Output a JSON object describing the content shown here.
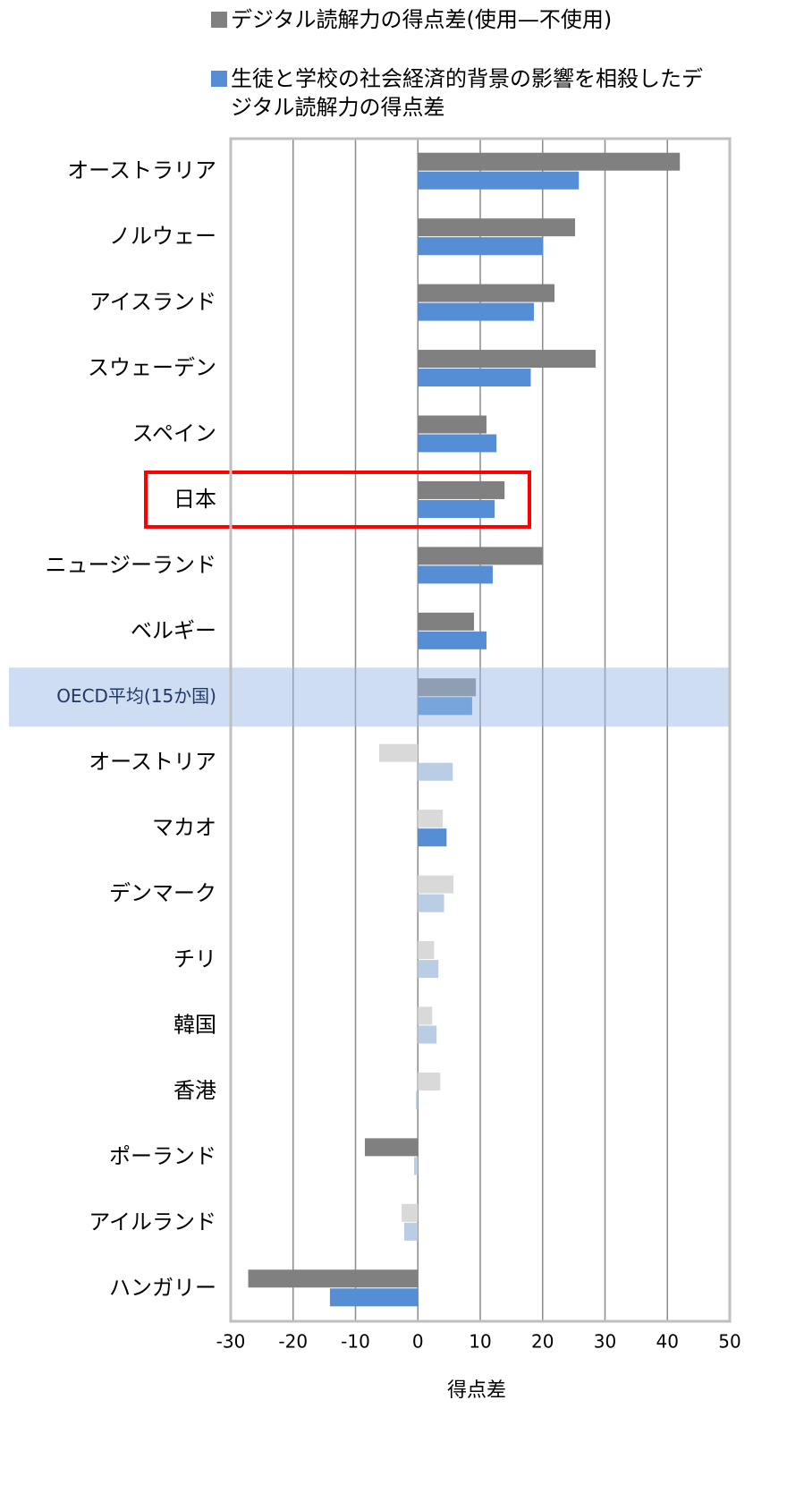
{
  "chart_data": {
    "type": "hbar",
    "categories": [
      "オーストラリア",
      "ノルウェー",
      "アイスランド",
      "スウェーデン",
      "スペイン",
      "日本",
      "ニュージーランド",
      "ベルギー",
      "OECD平均(15か国)",
      "オーストリア",
      "マカオ",
      "デンマーク",
      "チリ",
      "韓国",
      "香港",
      "ポーランド",
      "アイルランド",
      "ハンガリー"
    ],
    "series": [
      {
        "name": "デジタル読解力の得点差(使用—不使用)",
        "color": "#808080",
        "values": [
          42.0,
          25.2,
          21.9,
          28.5,
          11.0,
          13.9,
          20.1,
          9.0,
          9.3,
          -6.2,
          4.0,
          5.7,
          2.6,
          2.3,
          3.6,
          -8.5,
          -2.6,
          -27.2
        ],
        "colors": [
          "#808080",
          "#808080",
          "#808080",
          "#808080",
          "#808080",
          "#808080",
          "#808080",
          "#808080",
          "#808080",
          "#d9d9d9",
          "#d9d9d9",
          "#d9d9d9",
          "#d9d9d9",
          "#d9d9d9",
          "#d9d9d9",
          "#808080",
          "#d9d9d9",
          "#808080"
        ]
      },
      {
        "name": "生徒と学校の社会経済的背景の影響を相殺したデジタル読解力の得点差",
        "color": "#558ed5",
        "values": [
          25.8,
          20.1,
          18.6,
          18.1,
          12.6,
          12.3,
          12.0,
          11.0,
          8.7,
          5.6,
          4.6,
          4.2,
          3.3,
          3.0,
          -0.3,
          -0.6,
          -2.2,
          -14.1
        ],
        "colors": [
          "#558ed5",
          "#558ed5",
          "#558ed5",
          "#558ed5",
          "#558ed5",
          "#558ed5",
          "#558ed5",
          "#558ed5",
          "#558ed5",
          "#b9cde5",
          "#558ed5",
          "#b9cde5",
          "#b9cde5",
          "#b9cde5",
          "#b9cde5",
          "#b9cde5",
          "#b9cde5",
          "#558ed5"
        ]
      }
    ],
    "xlabel": "得点差",
    "xlim": [
      -30,
      50
    ],
    "xticks": [
      -30,
      -20,
      -10,
      0,
      10,
      20,
      30,
      40,
      50
    ],
    "grid": true,
    "highlight_band": "OECD平均(15か国)",
    "highlight_box": "日本"
  }
}
